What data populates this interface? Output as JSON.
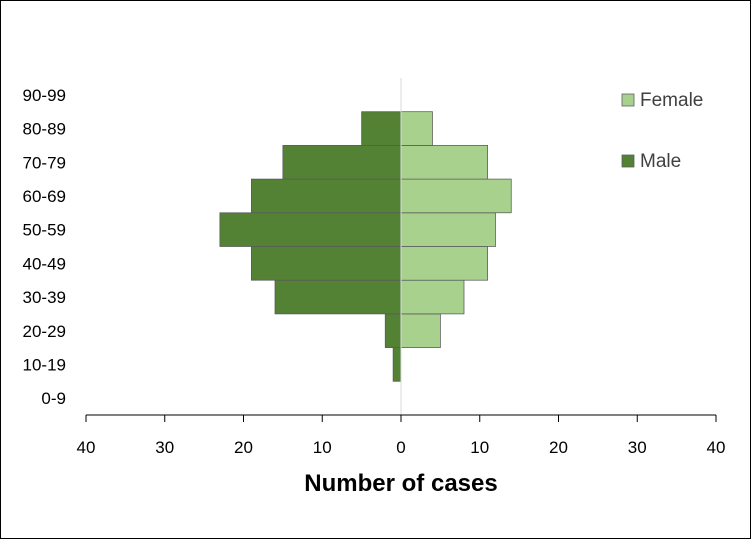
{
  "chart_data": {
    "type": "bar",
    "orientation": "horizontal",
    "layout": "population-pyramid",
    "title": "",
    "xlabel": "Number of cases",
    "ylabel": "",
    "categories": [
      "0-9",
      "10-19",
      "20-29",
      "30-39",
      "40-49",
      "50-59",
      "60-69",
      "70-79",
      "80-89",
      "90-99"
    ],
    "series": [
      {
        "name": "Female",
        "side": "right",
        "color": "#a9d18e",
        "values": [
          0,
          0,
          5,
          8,
          11,
          12,
          14,
          11,
          4,
          0
        ]
      },
      {
        "name": "Male",
        "side": "left",
        "color": "#548235",
        "values": [
          0,
          1,
          2,
          16,
          19,
          23,
          19,
          15,
          5,
          0
        ]
      }
    ],
    "xlim": [
      -40,
      40
    ],
    "xticks": [
      -40,
      -30,
      -20,
      -10,
      0,
      10,
      20,
      30,
      40
    ],
    "xtick_labels": [
      "40",
      "30",
      "20",
      "10",
      "0",
      "10",
      "20",
      "30",
      "40"
    ],
    "grid": false,
    "legend": {
      "position": "top-right",
      "entries": [
        "Female",
        "Male"
      ]
    }
  }
}
